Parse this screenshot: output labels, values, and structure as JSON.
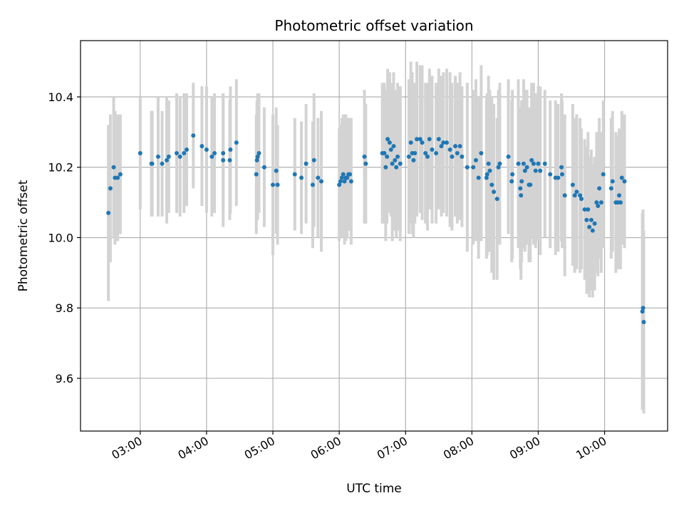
{
  "chart_data": {
    "type": "scatter",
    "title": "Photometric offset variation",
    "xlabel": "UTC time",
    "ylabel": "Photometric offset",
    "x_tick_labels": [
      "03:00",
      "04:00",
      "05:00",
      "06:00",
      "07:00",
      "08:00",
      "09:00",
      "10:00"
    ],
    "y_tick_labels": [
      "9.6",
      "9.8",
      "10.0",
      "10.2",
      "10.4"
    ],
    "y_ticks": [
      9.6,
      9.8,
      10.0,
      10.2,
      10.4
    ],
    "x_ticks_hours": [
      3,
      4,
      5,
      6,
      7,
      8,
      9,
      10
    ],
    "xlim_hours": [
      2.1,
      10.95
    ],
    "ylim": [
      9.45,
      10.56
    ],
    "grid": true,
    "colors": {
      "points": "#1f77b4",
      "errorbars": "#d3d3d3",
      "grid": "#b0b0b0"
    },
    "points": [
      [
        2.52,
        10.07,
        0.25
      ],
      [
        2.55,
        10.14,
        0.21
      ],
      [
        2.6,
        10.2,
        0.2
      ],
      [
        2.62,
        10.17,
        0.19
      ],
      [
        2.66,
        10.17,
        0.18
      ],
      [
        2.7,
        10.18,
        0.17
      ],
      [
        3.0,
        10.24,
        0.16
      ],
      [
        3.17,
        10.21,
        0.15
      ],
      [
        3.18,
        10.21,
        0.15
      ],
      [
        3.27,
        10.23,
        0.17
      ],
      [
        3.33,
        10.21,
        0.15
      ],
      [
        3.4,
        10.22,
        0.18
      ],
      [
        3.43,
        10.23,
        0.16
      ],
      [
        3.55,
        10.24,
        0.17
      ],
      [
        3.6,
        10.23,
        0.17
      ],
      [
        3.66,
        10.24,
        0.17
      ],
      [
        3.7,
        10.25,
        0.16
      ],
      [
        3.8,
        10.29,
        0.15
      ],
      [
        3.93,
        10.26,
        0.17
      ],
      [
        4.0,
        10.25,
        0.18
      ],
      [
        4.08,
        10.23,
        0.17
      ],
      [
        4.12,
        10.24,
        0.17
      ],
      [
        4.25,
        10.22,
        0.19
      ],
      [
        4.25,
        10.24,
        0.17
      ],
      [
        4.35,
        10.22,
        0.17
      ],
      [
        4.36,
        10.25,
        0.18
      ],
      [
        4.45,
        10.27,
        0.18
      ],
      [
        4.75,
        10.18,
        0.17
      ],
      [
        4.76,
        10.22,
        0.17
      ],
      [
        4.77,
        10.23,
        0.18
      ],
      [
        4.79,
        10.24,
        0.17
      ],
      [
        4.87,
        10.2,
        0.17
      ],
      [
        5.0,
        10.15,
        0.2
      ],
      [
        5.05,
        10.19,
        0.18
      ],
      [
        5.07,
        10.15,
        0.17
      ],
      [
        5.33,
        10.18,
        0.16
      ],
      [
        5.43,
        10.17,
        0.16
      ],
      [
        5.5,
        10.21,
        0.17
      ],
      [
        5.6,
        10.15,
        0.18
      ],
      [
        5.62,
        10.22,
        0.19
      ],
      [
        5.68,
        10.17,
        0.17
      ],
      [
        5.73,
        10.16,
        0.2
      ],
      [
        6.0,
        10.15,
        0.16
      ],
      [
        6.02,
        10.16,
        0.16
      ],
      [
        6.04,
        10.17,
        0.17
      ],
      [
        6.06,
        10.18,
        0.17
      ],
      [
        6.08,
        10.16,
        0.18
      ],
      [
        6.1,
        10.17,
        0.18
      ],
      [
        6.12,
        10.17,
        0.17
      ],
      [
        6.14,
        10.18,
        0.16
      ],
      [
        6.16,
        10.18,
        0.16
      ],
      [
        6.18,
        10.16,
        0.18
      ],
      [
        6.38,
        10.23,
        0.19
      ],
      [
        6.4,
        10.21,
        0.17
      ],
      [
        6.65,
        10.24,
        0.2
      ],
      [
        6.68,
        10.24,
        0.2
      ],
      [
        6.7,
        10.2,
        0.21
      ],
      [
        6.72,
        10.23,
        0.19
      ],
      [
        6.73,
        10.28,
        0.2
      ],
      [
        6.76,
        10.27,
        0.2
      ],
      [
        6.78,
        10.25,
        0.19
      ],
      [
        6.8,
        10.21,
        0.22
      ],
      [
        6.82,
        10.26,
        0.21
      ],
      [
        6.84,
        10.22,
        0.2
      ],
      [
        6.86,
        10.2,
        0.2
      ],
      [
        6.88,
        10.23,
        0.21
      ],
      [
        6.92,
        10.21,
        0.22
      ],
      [
        7.05,
        10.23,
        0.22
      ],
      [
        7.08,
        10.27,
        0.23
      ],
      [
        7.1,
        10.24,
        0.23
      ],
      [
        7.12,
        10.22,
        0.22
      ],
      [
        7.14,
        10.24,
        0.2
      ],
      [
        7.17,
        10.28,
        0.22
      ],
      [
        7.22,
        10.28,
        0.21
      ],
      [
        7.25,
        10.27,
        0.22
      ],
      [
        7.3,
        10.24,
        0.2
      ],
      [
        7.33,
        10.23,
        0.21
      ],
      [
        7.36,
        10.28,
        0.2
      ],
      [
        7.4,
        10.25,
        0.21
      ],
      [
        7.46,
        10.24,
        0.2
      ],
      [
        7.5,
        10.28,
        0.2
      ],
      [
        7.54,
        10.26,
        0.2
      ],
      [
        7.57,
        10.27,
        0.2
      ],
      [
        7.62,
        10.27,
        0.21
      ],
      [
        7.67,
        10.25,
        0.22
      ],
      [
        7.7,
        10.23,
        0.21
      ],
      [
        7.75,
        10.26,
        0.2
      ],
      [
        7.78,
        10.24,
        0.2
      ],
      [
        7.82,
        10.26,
        0.21
      ],
      [
        7.85,
        10.23,
        0.2
      ],
      [
        7.93,
        10.2,
        0.24
      ],
      [
        8.02,
        10.2,
        0.22
      ],
      [
        8.06,
        10.22,
        0.23
      ],
      [
        8.1,
        10.17,
        0.23
      ],
      [
        8.14,
        10.24,
        0.25
      ],
      [
        8.22,
        10.17,
        0.23
      ],
      [
        8.23,
        10.18,
        0.23
      ],
      [
        8.25,
        10.21,
        0.25
      ],
      [
        8.27,
        10.19,
        0.23
      ],
      [
        8.3,
        10.15,
        0.25
      ],
      [
        8.33,
        10.13,
        0.25
      ],
      [
        8.38,
        10.11,
        0.23
      ],
      [
        8.4,
        10.2,
        0.22
      ],
      [
        8.42,
        10.21,
        0.23
      ],
      [
        8.55,
        10.23,
        0.22
      ],
      [
        8.6,
        10.16,
        0.23
      ],
      [
        8.61,
        10.18,
        0.24
      ],
      [
        8.7,
        10.21,
        0.24
      ],
      [
        8.73,
        10.14,
        0.23
      ],
      [
        8.74,
        10.12,
        0.24
      ],
      [
        8.75,
        10.16,
        0.23
      ],
      [
        8.78,
        10.21,
        0.24
      ],
      [
        8.8,
        10.19,
        0.23
      ],
      [
        8.83,
        10.2,
        0.22
      ],
      [
        8.86,
        10.15,
        0.22
      ],
      [
        8.88,
        10.15,
        0.22
      ],
      [
        8.9,
        10.22,
        0.22
      ],
      [
        8.93,
        10.21,
        0.23
      ],
      [
        8.96,
        10.19,
        0.22
      ],
      [
        9.0,
        10.21,
        0.22
      ],
      [
        9.03,
        10.19,
        0.24
      ],
      [
        9.1,
        10.21,
        0.21
      ],
      [
        9.18,
        10.18,
        0.21
      ],
      [
        9.26,
        10.17,
        0.22
      ],
      [
        9.3,
        10.17,
        0.21
      ],
      [
        9.35,
        10.2,
        0.21
      ],
      [
        9.36,
        10.18,
        0.21
      ],
      [
        9.4,
        10.12,
        0.23
      ],
      [
        9.52,
        10.15,
        0.23
      ],
      [
        9.55,
        10.12,
        0.22
      ],
      [
        9.58,
        10.13,
        0.22
      ],
      [
        9.63,
        10.12,
        0.22
      ],
      [
        9.65,
        10.11,
        0.2
      ],
      [
        9.7,
        10.08,
        0.2
      ],
      [
        9.73,
        10.05,
        0.21
      ],
      [
        9.75,
        10.08,
        0.22
      ],
      [
        9.77,
        10.03,
        0.2
      ],
      [
        9.8,
        10.05,
        0.2
      ],
      [
        9.82,
        10.02,
        0.19
      ],
      [
        9.85,
        10.04,
        0.19
      ],
      [
        9.88,
        10.1,
        0.2
      ],
      [
        9.9,
        10.09,
        0.2
      ],
      [
        9.92,
        10.14,
        0.2
      ],
      [
        9.95,
        10.1,
        0.2
      ],
      [
        9.98,
        10.18,
        0.21
      ],
      [
        10.1,
        10.14,
        0.2
      ],
      [
        10.12,
        10.16,
        0.2
      ],
      [
        10.17,
        10.1,
        0.2
      ],
      [
        10.2,
        10.1,
        0.19
      ],
      [
        10.22,
        10.12,
        0.19
      ],
      [
        10.24,
        10.1,
        0.19
      ],
      [
        10.26,
        10.17,
        0.19
      ],
      [
        10.3,
        10.16,
        0.19
      ],
      [
        10.57,
        9.79,
        0.28
      ],
      [
        10.58,
        9.8,
        0.28
      ],
      [
        10.59,
        9.76,
        0.26
      ]
    ]
  }
}
